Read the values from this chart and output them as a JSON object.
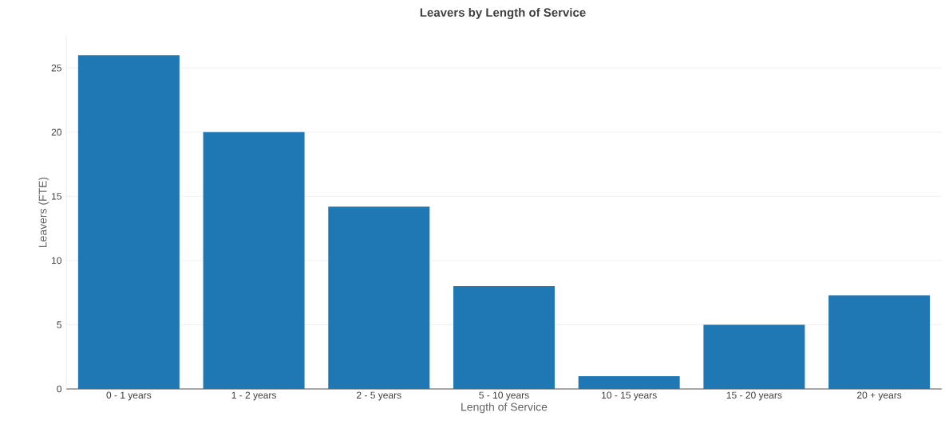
{
  "chart_data": {
    "type": "bar",
    "title": "Leavers by Length of Service",
    "xlabel": "Length of Service",
    "ylabel": "Leavers (FTE)",
    "categories": [
      "0 - 1 years",
      "1 - 2 years",
      "2 - 5 years",
      "5 - 10 years",
      "10 - 15 years",
      "15 - 20 years",
      "20 + years"
    ],
    "values": [
      26,
      20,
      14.2,
      8,
      1,
      5,
      7.3
    ],
    "color": "#1f77b4",
    "ylim": [
      0,
      27.5
    ],
    "yticks": [
      0,
      5,
      10,
      15,
      20,
      25
    ],
    "grid": "y"
  }
}
